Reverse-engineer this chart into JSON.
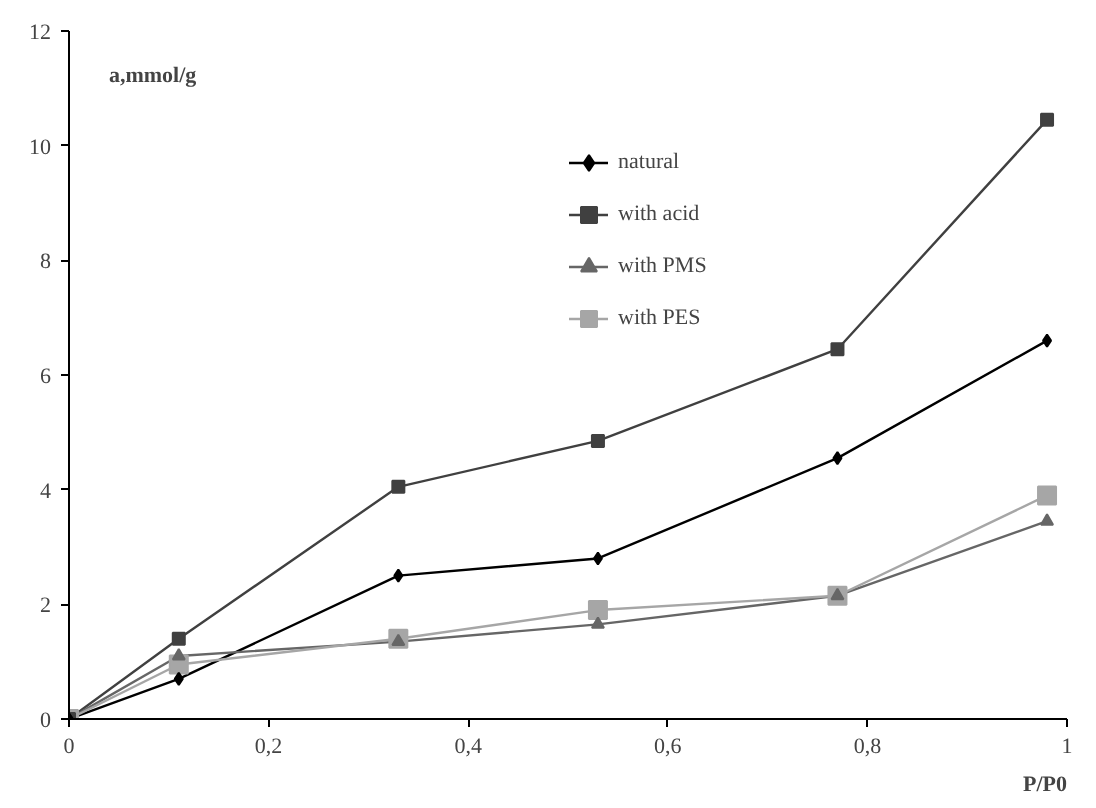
{
  "chart_data": {
    "type": "line",
    "xlabel": "P/P0",
    "ylabel": "a,mmol/g",
    "x": [
      0,
      0.11,
      0.33,
      0.53,
      0.77,
      0.98
    ],
    "series": [
      {
        "name": "natural",
        "color": "#000000",
        "marker": "diamond",
        "values": [
          0,
          0.7,
          2.5,
          2.8,
          4.55,
          6.6
        ]
      },
      {
        "name": "with acid",
        "color": "#404040",
        "marker": "square",
        "values": [
          0,
          1.4,
          4.05,
          4.85,
          6.45,
          10.45
        ]
      },
      {
        "name": "with PMS",
        "color": "#666666",
        "marker": "triangle",
        "values": [
          0,
          1.1,
          1.35,
          1.65,
          2.15,
          3.45
        ]
      },
      {
        "name": "with PES",
        "color": "#a6a6a6",
        "marker": "square",
        "values": [
          0,
          0.95,
          1.4,
          1.9,
          2.15,
          3.9
        ]
      }
    ],
    "xlim": [
      0,
      1
    ],
    "ylim": [
      0,
      12
    ],
    "xticks": [
      0,
      {
        "value": 0.2,
        "label": "0,2"
      },
      {
        "value": 0.4,
        "label": "0,4"
      },
      {
        "value": 0.6,
        "label": "0,6"
      },
      {
        "value": 0.8,
        "label": "0,8"
      },
      1
    ],
    "yticks": [
      0,
      2,
      4,
      6,
      8,
      10,
      12
    ],
    "grid": false,
    "legend": "top right",
    "line_style": "solid"
  }
}
